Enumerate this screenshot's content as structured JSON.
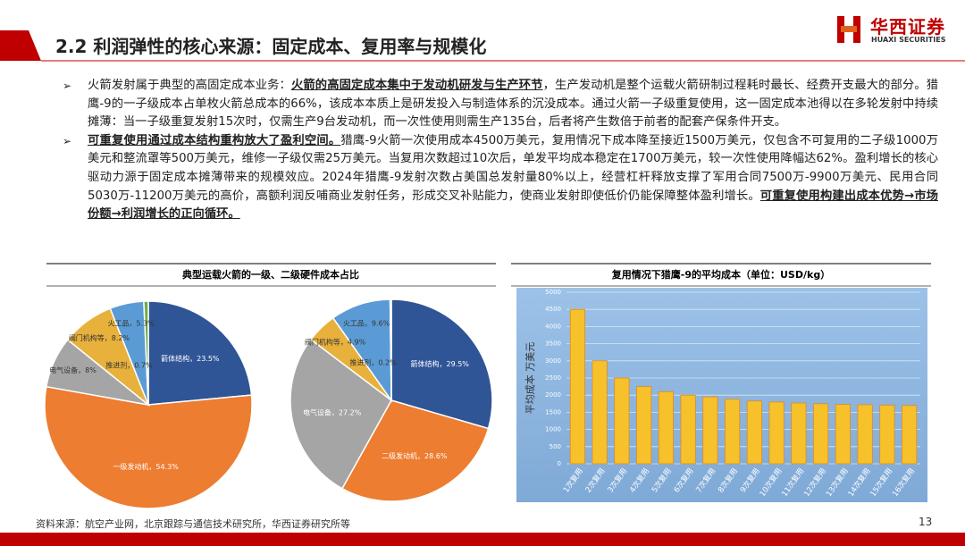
{
  "header": {
    "title": "2.2 利润弹性的核心来源：固定成本、复用率与规模化",
    "logo": "华西证券",
    "logo_en": "HUAXI SECURITIES"
  },
  "body": {
    "bullets": [
      [
        "火箭发射属于典型的高固定成本业务：",
        "火箭的高固定成本集中于发动机研发与生产环节",
        "，生产发动机是整个运载火箭研制过程耗时最长、经费开支最大的部分。猎鹰-9的一子级成本占单枚火箭总成本的66%，该成本本质上是研发投入与制造体系的沉没成本。通过火箭一子级重复使用，这一固定成本池得以在多轮发射中持续摊薄：当一子级重复发射15次时，仅需生产9台发动机，而一次性使用则需生产135台，后者将产生数倍于前者的配套产保条件开支。"
      ],
      [
        "可重复使用通过成本结构重构放大了盈利空间。",
        "猎鹰-9火箭一次使用成本4500万美元，复用情况下成本降至接近1500万美元，仅包含不可复用的二子级1000万美元和整流罩等500万美元，维修一子级仅需25万美元。当复用次数超过10次后，单发平均成本稳定在1700万美元，较一次性使用降幅达62%。盈利增长的核心驱动力源于固定成本摊薄带来的规模效应。2024年猎鹰-9发射次数占美国总发射量80%以上，经营杠杆释放支撑了军用合同7500万-9900万美元、民用合同5030万-11200万美元的高价，高额利润反哺商业发射任务，形成交叉补贴能力，使商业发射即使低价仍能保障整体盈利增长。",
        "可重复使用构建出成本优势→市场份额→利润增长的正向循环。"
      ]
    ]
  },
  "chart_data": [
    {
      "type": "pie",
      "title": "典型运载火箭的一级、二级硬件成本占比",
      "values": [
        23.5,
        54.3,
        8,
        8.2,
        5.3,
        0.7
      ],
      "value_labels": [
        "箭体结构，23.5%",
        "一级发动机，54.3%",
        "电气设备，8%",
        "阀门机构等，8.2%",
        "火工品，5.3%",
        "推进剂，0.7%"
      ],
      "colors": [
        "#2f5597",
        "#ed7d31",
        "#a5a5a5",
        "#e8b13c",
        "#5b9bd5",
        "#70ad47"
      ]
    },
    {
      "type": "pie",
      "values": [
        29.5,
        28.6,
        27.2,
        4.9,
        9.6,
        0.2
      ],
      "value_labels": [
        "箭体结构，29.5%",
        "二级发动机，28.6%",
        "电气设备，27.2%",
        "阀门机构等，4.9%",
        "火工品，9.6%",
        "推进剂，0.2%"
      ],
      "colors": [
        "#2f5597",
        "#ed7d31",
        "#a5a5a5",
        "#e8b13c",
        "#5b9bd5",
        "#70ad47"
      ]
    },
    {
      "type": "bar",
      "title": "复用情况下猎鹰-9的平均成本（单位：USD/kg）",
      "y_label": "平均成本 万美元",
      "categories": [
        "1次复用",
        "2次复用",
        "3次复用",
        "4次复用",
        "5次复用",
        "6次复用",
        "7次复用",
        "8次复用",
        "9次复用",
        "10次复用",
        "11次复用",
        "12次复用",
        "13次复用",
        "14次复用",
        "15次复用",
        "16次复用"
      ],
      "values": [
        4500,
        3000,
        2500,
        2250,
        2100,
        2000,
        1950,
        1880,
        1830,
        1800,
        1770,
        1750,
        1730,
        1720,
        1710,
        1700
      ],
      "color": "#f6c12a",
      "ylim": [
        0,
        5000
      ],
      "yticks": [
        0,
        500,
        1000,
        1500,
        2000,
        2500,
        3000,
        3500,
        4000,
        4500,
        5000
      ],
      "grid": true
    }
  ],
  "footer": {
    "source": "资料来源：航空产业网，北京跟踪与通信技术研究所，华西证券研究所等",
    "page": "13"
  }
}
